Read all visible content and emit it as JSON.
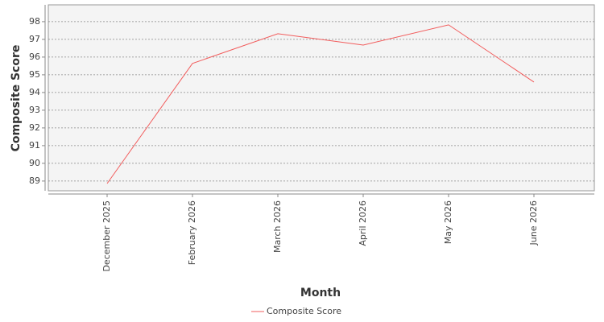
{
  "chart_data": {
    "type": "line",
    "x_label": "Month",
    "y_label": "Composite Score",
    "categories": [
      "December 2025",
      "February 2026",
      "March 2026",
      "April 2026",
      "May 2026",
      "June 2026"
    ],
    "series": [
      {
        "name": "Composite Score",
        "color": "#f25c5c",
        "values": [
          88.86,
          95.64,
          97.32,
          96.68,
          97.82,
          94.59
        ]
      }
    ],
    "ylim": [
      88.45,
      98.95
    ],
    "yticks": [
      89,
      90,
      91,
      92,
      93,
      94,
      95,
      96,
      97,
      98
    ],
    "grid": true,
    "legend": "bottom"
  }
}
